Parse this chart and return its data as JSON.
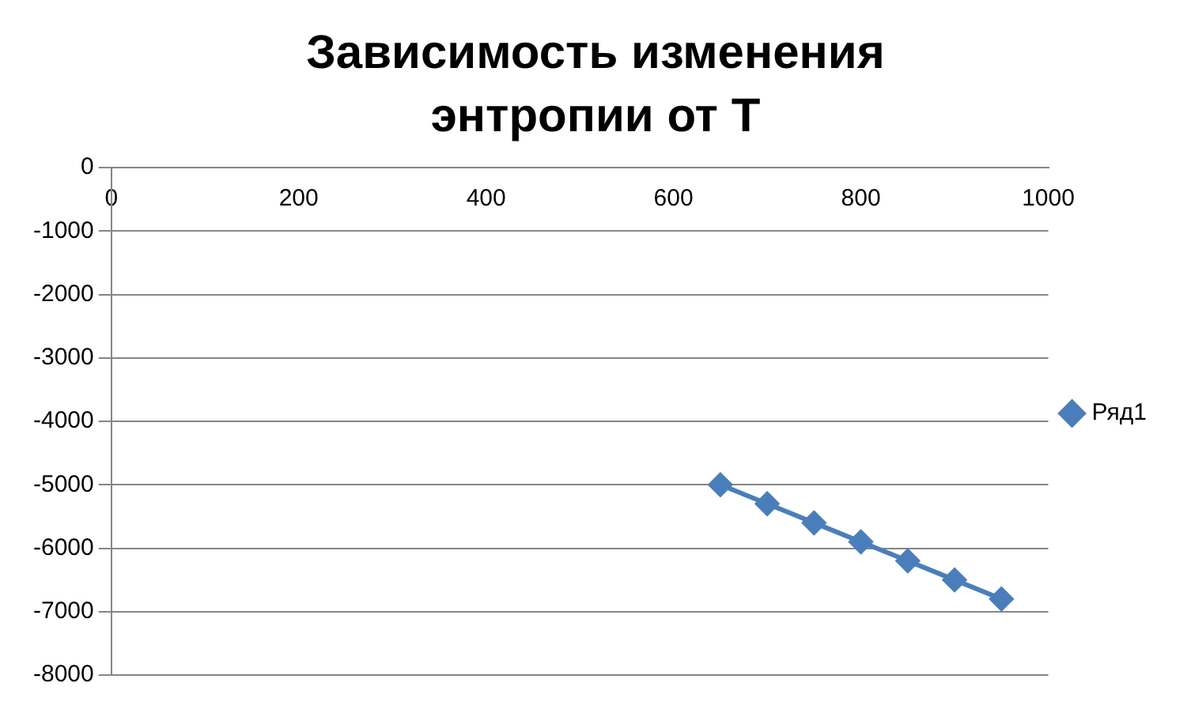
{
  "chart_data": {
    "type": "line",
    "title": "Зависимость изменения энтропии от T",
    "x": [
      650,
      700,
      750,
      800,
      850,
      900,
      950
    ],
    "series": [
      {
        "name": "Ряд1",
        "color": "#4a7ebb",
        "values": [
          -5000,
          -5300,
          -5600,
          -5900,
          -6200,
          -6500,
          -6800
        ]
      }
    ],
    "xlim": [
      0,
      1000
    ],
    "xticks": [
      0,
      200,
      400,
      600,
      800,
      1000
    ],
    "ylim": [
      -8000,
      0
    ],
    "yticks": [
      -8000,
      -7000,
      -6000,
      -5000,
      -4000,
      -3000,
      -2000,
      -1000,
      0
    ],
    "grid": "y",
    "legend": "right",
    "marker": "diamond",
    "line_style": "solid"
  }
}
